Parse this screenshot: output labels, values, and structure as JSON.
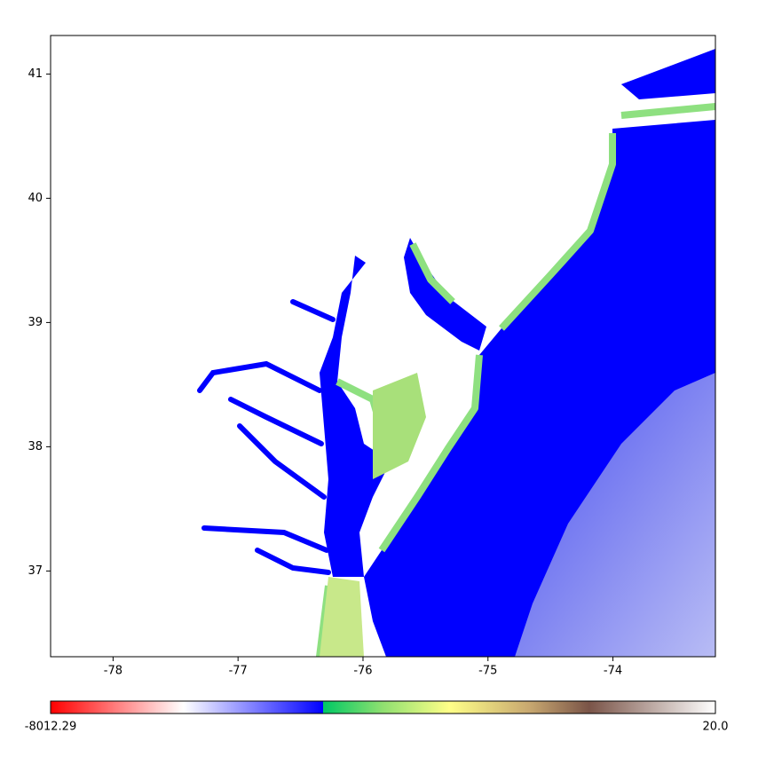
{
  "chart_data": {
    "type": "map",
    "xlim": [
      -78.5,
      -73.18
    ],
    "ylim": [
      36.31,
      41.31
    ],
    "xticks": [
      -78,
      -77,
      -76,
      -75,
      -74
    ],
    "yticks": [
      37,
      38,
      39,
      40,
      41
    ],
    "colorbar": {
      "min": -8012.29,
      "max": {
        "value": 20,
        "label": "20.0"
      },
      "colormap": [
        "#ff0000",
        "#ffffff",
        "#0000ff",
        "#0000ff",
        "#00c864",
        "#90e070",
        "#ffff88",
        "#c8a870",
        "#7a5448",
        "#ffffff"
      ]
    },
    "ocean_color": "#0000ff",
    "deep_color": "#b8bcf4",
    "land_color": "#8ee080"
  }
}
